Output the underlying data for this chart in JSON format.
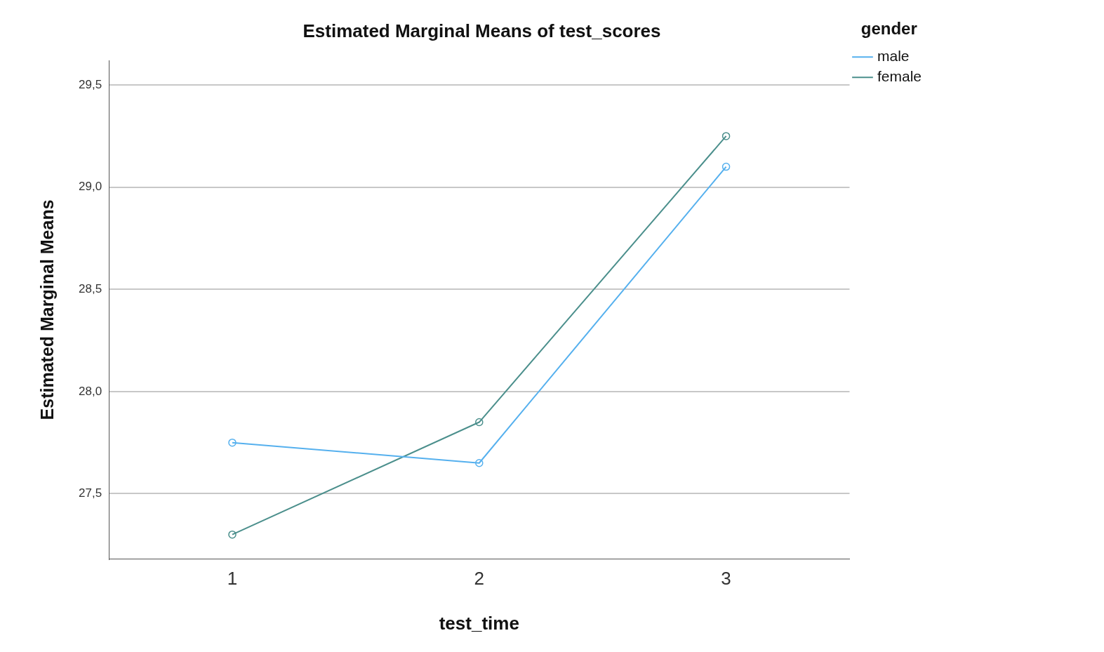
{
  "chart_data": {
    "type": "line",
    "title": "Estimated Marginal Means of test_scores",
    "xlabel": "test_time",
    "ylabel": "Estimated Marginal Means",
    "legend_title": "gender",
    "categories": [
      "1",
      "2",
      "3"
    ],
    "series": [
      {
        "name": "male",
        "color": "#55b0ee",
        "values": [
          27.75,
          27.65,
          29.1
        ]
      },
      {
        "name": "female",
        "color": "#4b8f8c",
        "values": [
          27.3,
          27.85,
          29.25
        ]
      }
    ],
    "ylim": [
      27.18,
      29.62
    ],
    "yticks": [
      {
        "value": 27.5,
        "label": "27,5"
      },
      {
        "value": 28.0,
        "label": "28,0"
      },
      {
        "value": 28.5,
        "label": "28,5"
      },
      {
        "value": 29.0,
        "label": "29,0"
      },
      {
        "value": 29.5,
        "label": "29,5"
      }
    ],
    "grid": "y",
    "legend": "top right",
    "marker": "circle",
    "line_style": "solid"
  }
}
